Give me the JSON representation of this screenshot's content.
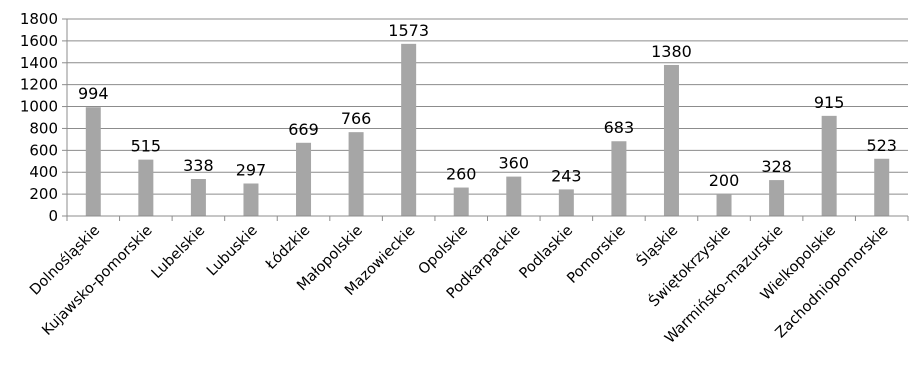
{
  "chart_data": {
    "type": "bar",
    "categories": [
      "Dolnośląskie",
      "Kujawsko-pomorskie",
      "Lubelskie",
      "Lubuskie",
      "Łódzkie",
      "Małopolskie",
      "Mazowieckie",
      "Opolskie",
      "Podkarpackie",
      "Podlaskie",
      "Pomorskie",
      "Śląskie",
      "Świętokrzyskie",
      "Warmińsko-mazurskie",
      "Wielkopolskie",
      "Zachodniopomorskie"
    ],
    "values": [
      994,
      515,
      338,
      297,
      669,
      766,
      1573,
      260,
      360,
      243,
      683,
      1380,
      200,
      328,
      915,
      523
    ],
    "y_ticks": [
      0,
      200,
      400,
      600,
      800,
      1000,
      1200,
      1400,
      1600,
      1800
    ],
    "ylim": [
      0,
      1800
    ],
    "grid": true,
    "legend": "none",
    "bar_color": "#a6a6a6",
    "title": "",
    "xlabel": "",
    "ylabel": ""
  }
}
